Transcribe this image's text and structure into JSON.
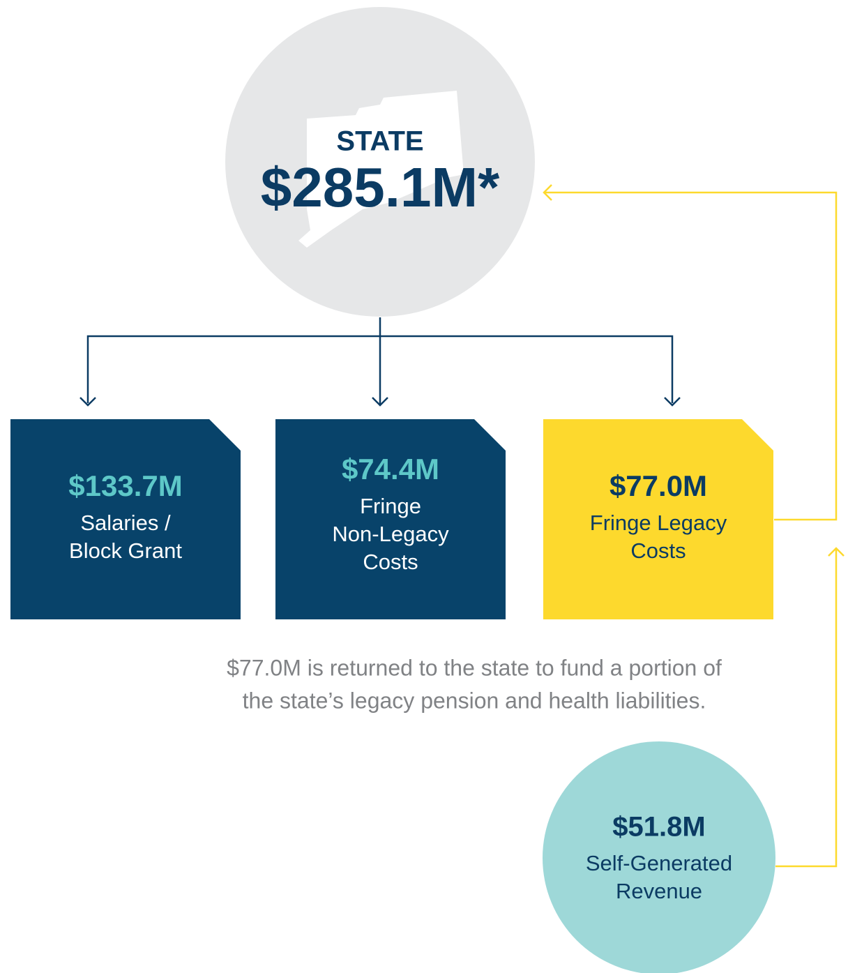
{
  "state": {
    "label": "STATE",
    "amount": "$285.1M*"
  },
  "boxes": [
    {
      "amount": "$133.7M",
      "lines": [
        "Salaries /",
        "Block Grant"
      ]
    },
    {
      "amount": "$74.4M",
      "lines": [
        "Fringe",
        "Non-Legacy",
        "Costs"
      ]
    },
    {
      "amount": "$77.0M",
      "lines": [
        "Fringe Legacy",
        "Costs"
      ]
    }
  ],
  "note": [
    "$77.0M is returned to the state to fund a portion of",
    "the state’s legacy pension and health liabilities."
  ],
  "revenue": {
    "amount": "$51.8M",
    "lines": [
      "Self-Generated",
      "Revenue"
    ]
  }
}
